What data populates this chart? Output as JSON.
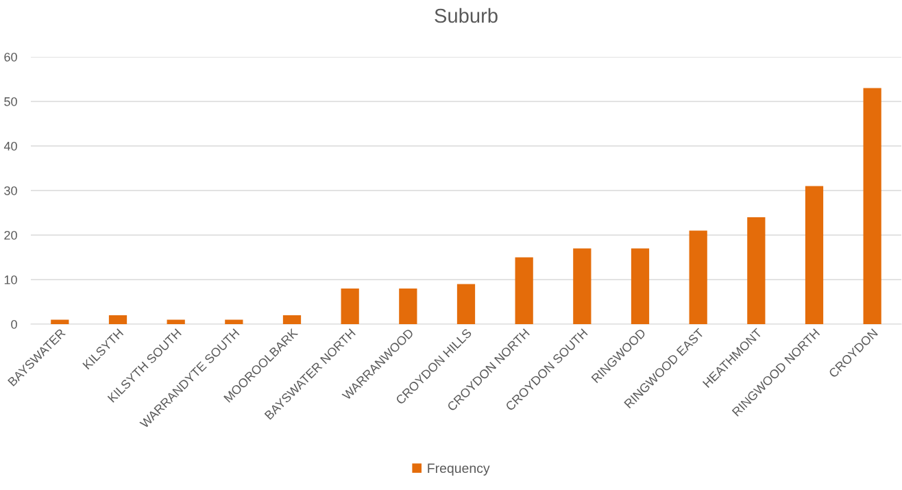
{
  "chart_data": {
    "type": "bar",
    "title": "Suburb",
    "categories": [
      "BAYSWATER",
      "KILSYTH",
      "KILSYTH SOUTH",
      "WARRANDYTE SOUTH",
      "MOOROOLBARK",
      "BAYSWATER NORTH",
      "WARRANWOOD",
      "CROYDON HILLS",
      "CROYDON NORTH",
      "CROYDON SOUTH",
      "RINGWOOD",
      "RINGWOOD EAST",
      "HEATHMONT",
      "RINGWOOD NORTH",
      "CROYDON"
    ],
    "series": [
      {
        "name": "Frequency",
        "color": "#e46c0a",
        "values": [
          1,
          2,
          1,
          1,
          2,
          8,
          8,
          9,
          15,
          17,
          17,
          21,
          24,
          31,
          53
        ]
      }
    ],
    "ylim": [
      0,
      60
    ],
    "yticks": [
      0,
      10,
      20,
      30,
      40,
      50,
      60
    ],
    "grid": "y",
    "legend": "bottom"
  }
}
